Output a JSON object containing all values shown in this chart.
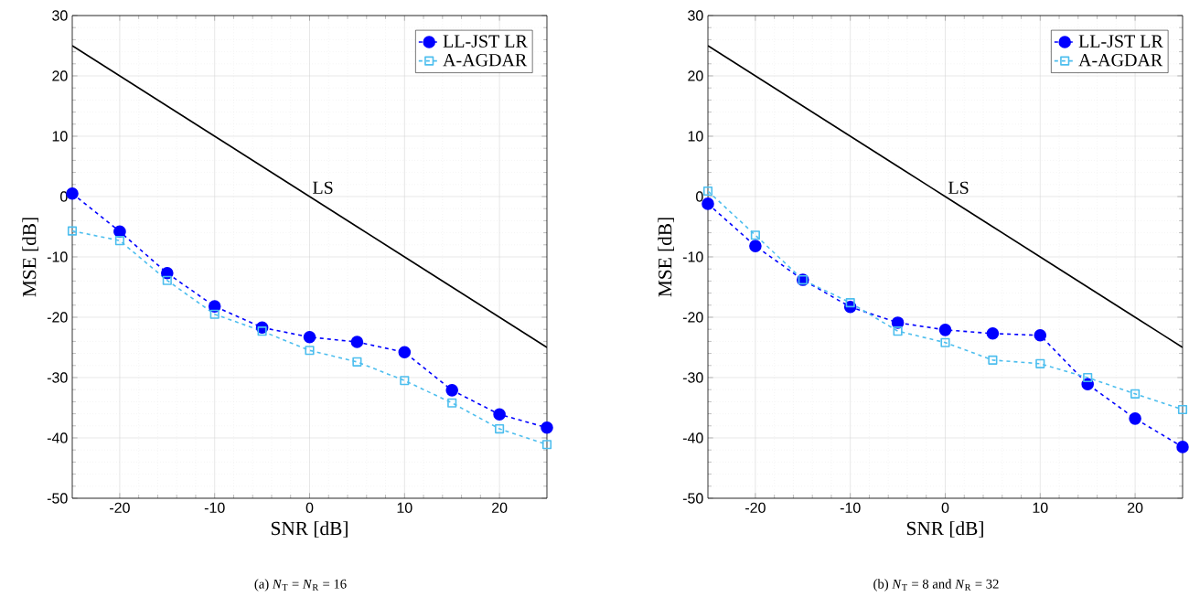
{
  "chart_data": [
    {
      "type": "line",
      "subtitle": "(a) *N*$_{T}$ = *N*$_{R}$ = 16",
      "xlabel": "SNR [dB]",
      "ylabel": "MSE [dB]",
      "x": [
        -25,
        -20,
        -15,
        -10,
        -5,
        0,
        5,
        10,
        15,
        20,
        25
      ],
      "xlim": [
        -25,
        25
      ],
      "ylim": [
        -50,
        30
      ],
      "xticks": [
        -20,
        -10,
        0,
        10,
        20
      ],
      "yticks": [
        -50,
        -40,
        -30,
        -20,
        -10,
        0,
        10,
        20,
        30
      ],
      "grid": true,
      "legend": "top right",
      "line_style": "dashed",
      "annotations": [
        {
          "text": "LS",
          "x": 0,
          "y": 0
        }
      ],
      "series": [
        {
          "name": "LL-JST LR",
          "color": "#0000ff",
          "marker": "circle",
          "values": [
            0.5,
            -5.8,
            -12.7,
            -18.2,
            -21.7,
            -23.3,
            -24.1,
            -25.8,
            -32.1,
            -36.1,
            -38.3
          ]
        },
        {
          "name": "A-AGDAR",
          "color": "#4dbeee",
          "marker": "square",
          "values": [
            -5.7,
            -7.3,
            -13.9,
            -19.5,
            -22.3,
            -25.5,
            -27.4,
            -30.5,
            -34.2,
            -38.5,
            -41.1
          ]
        },
        {
          "color": "#000000",
          "marker": "none",
          "line_style": "solid",
          "values": [
            25,
            20,
            15,
            10,
            5,
            0,
            -5,
            -10,
            -15,
            -20,
            -25
          ]
        }
      ]
    },
    {
      "type": "line",
      "subtitle": "(b) *N*$_{T}$ = 8 and *N*$_{R}$ = 32",
      "xlabel": "SNR [dB]",
      "ylabel": "MSE [dB]",
      "x": [
        -25,
        -20,
        -15,
        -10,
        -5,
        0,
        5,
        10,
        15,
        20,
        25
      ],
      "xlim": [
        -25,
        25
      ],
      "ylim": [
        -50,
        30
      ],
      "xticks": [
        -20,
        -10,
        0,
        10,
        20
      ],
      "yticks": [
        -50,
        -40,
        -30,
        -20,
        -10,
        0,
        10,
        20,
        30
      ],
      "grid": true,
      "legend": "top right",
      "line_style": "dashed",
      "annotations": [
        {
          "text": "LS",
          "x": 0,
          "y": 0
        }
      ],
      "series": [
        {
          "name": "LL-JST LR",
          "color": "#0000ff",
          "marker": "circle",
          "values": [
            -1.2,
            -8.2,
            -13.8,
            -18.3,
            -20.9,
            -22.1,
            -22.7,
            -23.0,
            -31.1,
            -36.8,
            -41.5
          ]
        },
        {
          "name": "A-AGDAR",
          "color": "#4dbeee",
          "marker": "square",
          "values": [
            0.9,
            -6.4,
            -13.8,
            -17.6,
            -22.3,
            -24.2,
            -27.1,
            -27.7,
            -30.0,
            -32.7,
            -35.3
          ]
        },
        {
          "color": "#000000",
          "marker": "none",
          "line_style": "solid",
          "values": [
            25,
            20,
            15,
            10,
            5,
            0,
            -5,
            -10,
            -15,
            -20,
            -25
          ]
        }
      ]
    }
  ]
}
